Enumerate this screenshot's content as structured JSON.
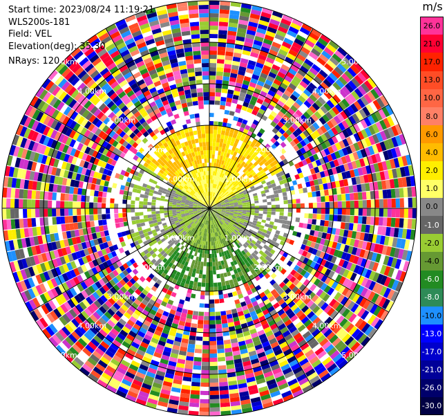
{
  "header": {
    "start_time": "Start time: 2023/08/24 11:19:21",
    "instrument": "WLS200s-181",
    "field": "Field: VEL",
    "elevation": "Elevation(deg): 35.30",
    "nrays": "NRays: 120"
  },
  "colorbar": {
    "unit": "m/s",
    "levels": [
      {
        "label": "26.0",
        "color": "#ff3399"
      },
      {
        "label": "21.0",
        "color": "#ff0033"
      },
      {
        "label": "17.0",
        "color": "#ff2200"
      },
      {
        "label": "13.0",
        "color": "#ff4d26"
      },
      {
        "label": "10.0",
        "color": "#ff6644"
      },
      {
        "label": "8.0",
        "color": "#ff8066"
      },
      {
        "label": "6.0",
        "color": "#ff9900"
      },
      {
        "label": "4.0",
        "color": "#ffbb00"
      },
      {
        "label": "2.0",
        "color": "#ffee00"
      },
      {
        "label": "1.0",
        "color": "#ffff66"
      },
      {
        "label": "0.0",
        "color": "#888888"
      },
      {
        "label": "-1.0",
        "color": "#666666"
      },
      {
        "label": "-2.0",
        "color": "#99cc33"
      },
      {
        "label": "-4.0",
        "color": "#669933"
      },
      {
        "label": "-6.0",
        "color": "#228b22"
      },
      {
        "label": "-8.0",
        "color": "#2e8b57"
      },
      {
        "label": "-10.0",
        "color": "#1e90ff"
      },
      {
        "label": "-13.0",
        "color": "#0000ff"
      },
      {
        "label": "-17.0",
        "color": "#0000cc"
      },
      {
        "label": "-21.0",
        "color": "#000099"
      },
      {
        "label": "-26.0",
        "color": "#00006b"
      },
      {
        "label": "-30.0",
        "color": "#000044"
      }
    ]
  },
  "range_labels": {
    "r1": "1.00km",
    "r2": "2.00km",
    "r3": "3.00km",
    "r4": "4.00km",
    "r5": "5.00km"
  },
  "noise_palette": [
    "#ff3399",
    "#ff0033",
    "#ff2200",
    "#ff4d26",
    "#ff8066",
    "#ffee00",
    "#ffff66",
    "#ffffff",
    "#888888",
    "#666666",
    "#99cc33",
    "#669933",
    "#228b22",
    "#1e90ff",
    "#0000ff",
    "#0000cc",
    "#000099",
    "#00006b",
    "#cc33cc",
    "#ff66cc"
  ]
}
